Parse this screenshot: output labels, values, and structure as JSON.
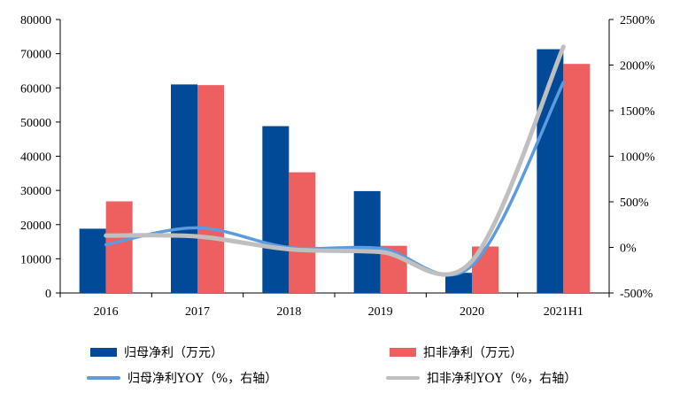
{
  "chart_data": {
    "type": "bar",
    "categories": [
      "2016",
      "2017",
      "2018",
      "2019",
      "2020",
      "2021H1"
    ],
    "y_left": {
      "min": 0,
      "max": 80000,
      "step": 10000,
      "tick_labels": [
        "0",
        "10000",
        "20000",
        "30000",
        "40000",
        "50000",
        "60000",
        "70000",
        "80000"
      ]
    },
    "y_right": {
      "min": -500,
      "max": 2500,
      "step": 500,
      "tick_labels": [
        "-500%",
        "0%",
        "500%",
        "1000%",
        "1500%",
        "2000%",
        "2500%"
      ]
    },
    "series": [
      {
        "name": "归母净利（万元）",
        "type": "bar",
        "axis": "left",
        "color": "#004a97",
        "values": [
          18800,
          61000,
          48800,
          29800,
          5900,
          71300
        ]
      },
      {
        "name": "扣非净利（万元）",
        "type": "bar",
        "axis": "left",
        "color": "#ee5f5f",
        "values": [
          26800,
          60800,
          35300,
          13800,
          13600,
          67000
        ]
      },
      {
        "name": "归母净利YOY（%，右轴）",
        "type": "line",
        "axis": "right",
        "color": "#5b9bde",
        "values": [
          30,
          215,
          0,
          -10,
          -200,
          1810
        ]
      },
      {
        "name": "扣非净利YOY（%，右轴）",
        "type": "line",
        "axis": "right",
        "color": "#bfbfbf",
        "values": [
          130,
          120,
          -20,
          -50,
          -150,
          2200
        ]
      }
    ],
    "grid": false
  }
}
